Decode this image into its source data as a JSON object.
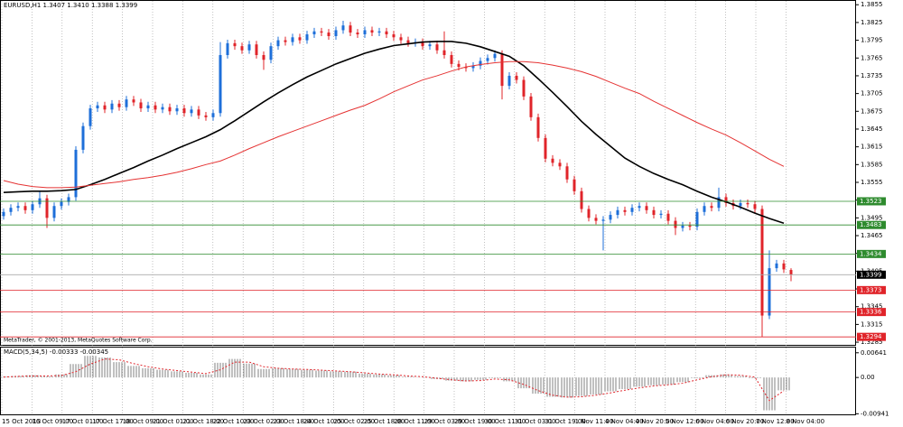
{
  "chart_data": [
    {
      "type": "candlestick",
      "title": "EURUSD,H1  1.3407 1.3410 1.3388 1.3399",
      "footer": "MetaTrader, © 2001-2013, MetaQuotes Software Corp.",
      "up_color": "#1e6fd9",
      "down_color": "#e0242a",
      "x_labels": [
        "15 Oct 2013",
        "16 Oct 09:00",
        "17 Oct 01:00",
        "17 Oct 17:00",
        "18 Oct 09:00",
        "21 Oct 01:00",
        "21 Oct 18:00",
        "22 Oct 10:00",
        "23 Oct 02:00",
        "23 Oct 18:00",
        "24 Oct 10:00",
        "25 Oct 02:00",
        "25 Oct 18:00",
        "28 Oct 11:00",
        "29 Oct 03:00",
        "29 Oct 19:00",
        "30 Oct 11:00",
        "31 Oct 03:00",
        "31 Oct 19:00",
        "1 Nov 11:00",
        "4 Nov 04:00",
        "4 Nov 20:00",
        "5 Nov 12:00",
        "6 Nov 04:00",
        "6 Nov 20:00",
        "7 Nov 12:00",
        "8 Nov 04:00"
      ],
      "ylim": [
        1.3279,
        1.3863
      ],
      "yticks": [
        1.3855,
        1.3825,
        1.3795,
        1.3765,
        1.3735,
        1.3705,
        1.3675,
        1.3645,
        1.3615,
        1.3585,
        1.3555,
        1.3525,
        1.3495,
        1.3465,
        1.3435,
        1.3405,
        1.3375,
        1.3345,
        1.3315,
        1.3285
      ],
      "open": [
        1.3498,
        1.3505,
        1.3512,
        1.3515,
        1.3508,
        1.3518,
        1.3528,
        1.3495,
        1.3515,
        1.3522,
        1.353,
        1.361,
        1.365,
        1.368,
        1.3685,
        1.3678,
        1.3688,
        1.3682,
        1.3695,
        1.369,
        1.368,
        1.3685,
        1.3678,
        1.3682,
        1.3675,
        1.368,
        1.3672,
        1.3678,
        1.3668,
        1.3665,
        1.3672,
        1.377,
        1.379,
        1.3785,
        1.3778,
        1.3788,
        1.377,
        1.3762,
        1.3785,
        1.3795,
        1.3792,
        1.38,
        1.3795,
        1.3805,
        1.381,
        1.3808,
        1.3802,
        1.3812,
        1.382,
        1.3808,
        1.3805,
        1.3812,
        1.3808,
        1.381,
        1.3805,
        1.38,
        1.3795,
        1.379,
        1.3792,
        1.3785,
        1.3788,
        1.3778,
        1.377,
        1.3755,
        1.375,
        1.3748,
        1.3752,
        1.376,
        1.3765,
        1.3772,
        1.3718,
        1.3735,
        1.3728,
        1.37,
        1.3665,
        1.363,
        1.3595,
        1.3588,
        1.3582,
        1.356,
        1.354,
        1.351,
        1.3495,
        1.349,
        1.3492,
        1.35,
        1.3508,
        1.3505,
        1.3512,
        1.3515,
        1.3508,
        1.35,
        1.3502,
        1.349,
        1.3478,
        1.3482,
        1.348,
        1.3505,
        1.3515,
        1.3512,
        1.353,
        1.352,
        1.3515,
        1.352,
        1.3518,
        1.351,
        1.333,
        1.341,
        1.3418,
        1.3407
      ],
      "high": [
        1.3511,
        1.3518,
        1.3521,
        1.3521,
        1.3524,
        1.354,
        1.3534,
        1.3521,
        1.3528,
        1.3536,
        1.3616,
        1.3656,
        1.3686,
        1.3691,
        1.3691,
        1.3694,
        1.3694,
        1.3701,
        1.3701,
        1.3696,
        1.3691,
        1.3691,
        1.3688,
        1.3688,
        1.3686,
        1.3686,
        1.3684,
        1.3684,
        1.3674,
        1.3678,
        1.3792,
        1.3796,
        1.3796,
        1.3791,
        1.3794,
        1.3794,
        1.3776,
        1.3791,
        1.3801,
        1.3801,
        1.3806,
        1.3806,
        1.3811,
        1.3816,
        1.3816,
        1.3814,
        1.3818,
        1.3828,
        1.3826,
        1.3814,
        1.3818,
        1.3818,
        1.3816,
        1.3816,
        1.3811,
        1.3806,
        1.3801,
        1.3798,
        1.3798,
        1.3794,
        1.3794,
        1.381,
        1.3776,
        1.3761,
        1.3756,
        1.3758,
        1.3766,
        1.3771,
        1.3778,
        1.3778,
        1.3741,
        1.3741,
        1.3734,
        1.3706,
        1.3671,
        1.3636,
        1.3601,
        1.3594,
        1.3588,
        1.3566,
        1.3546,
        1.3516,
        1.3501,
        1.3498,
        1.3506,
        1.3514,
        1.3514,
        1.3518,
        1.3521,
        1.3521,
        1.3514,
        1.3508,
        1.3508,
        1.3496,
        1.3488,
        1.3488,
        1.3511,
        1.3521,
        1.3521,
        1.3546,
        1.3536,
        1.3526,
        1.3526,
        1.3526,
        1.3524,
        1.3516,
        1.344,
        1.3424,
        1.3424,
        1.341
      ],
      "low": [
        1.3492,
        1.3499,
        1.3506,
        1.3502,
        1.3502,
        1.3512,
        1.3478,
        1.3489,
        1.3509,
        1.3516,
        1.3524,
        1.3604,
        1.3644,
        1.3674,
        1.3672,
        1.3672,
        1.3676,
        1.3676,
        1.3684,
        1.3674,
        1.3674,
        1.3672,
        1.3672,
        1.3669,
        1.3669,
        1.3666,
        1.3666,
        1.3662,
        1.3659,
        1.3659,
        1.3666,
        1.3764,
        1.3779,
        1.3772,
        1.3772,
        1.3764,
        1.3745,
        1.3756,
        1.3779,
        1.3786,
        1.3786,
        1.3789,
        1.3789,
        1.3799,
        1.3802,
        1.3796,
        1.3796,
        1.3806,
        1.3802,
        1.3799,
        1.3799,
        1.3802,
        1.3802,
        1.3799,
        1.3794,
        1.3789,
        1.3784,
        1.3784,
        1.3779,
        1.3779,
        1.3772,
        1.3764,
        1.3749,
        1.3744,
        1.3742,
        1.3742,
        1.3746,
        1.3754,
        1.3759,
        1.3695,
        1.3712,
        1.3722,
        1.3694,
        1.3659,
        1.3624,
        1.3589,
        1.3582,
        1.3576,
        1.3554,
        1.3534,
        1.3504,
        1.3489,
        1.3484,
        1.344,
        1.3486,
        1.3494,
        1.3499,
        1.3499,
        1.3506,
        1.3502,
        1.3494,
        1.3494,
        1.3484,
        1.3466,
        1.3472,
        1.3474,
        1.3474,
        1.3499,
        1.3506,
        1.3506,
        1.3514,
        1.3509,
        1.3509,
        1.3512,
        1.3504,
        1.3294,
        1.3324,
        1.3404,
        1.3402,
        1.3388
      ],
      "close": [
        1.3505,
        1.3512,
        1.3515,
        1.3508,
        1.3518,
        1.3528,
        1.3495,
        1.3515,
        1.3522,
        1.353,
        1.361,
        1.365,
        1.368,
        1.3685,
        1.3678,
        1.3688,
        1.3682,
        1.3695,
        1.369,
        1.368,
        1.3685,
        1.3678,
        1.3682,
        1.3675,
        1.368,
        1.3672,
        1.3678,
        1.3668,
        1.3665,
        1.3672,
        1.377,
        1.379,
        1.3785,
        1.3778,
        1.3788,
        1.377,
        1.3762,
        1.3785,
        1.3795,
        1.3792,
        1.38,
        1.3795,
        1.3805,
        1.381,
        1.3808,
        1.3802,
        1.3812,
        1.382,
        1.3808,
        1.3805,
        1.3812,
        1.3808,
        1.381,
        1.3805,
        1.38,
        1.3795,
        1.379,
        1.3792,
        1.3785,
        1.3788,
        1.3778,
        1.377,
        1.3755,
        1.375,
        1.3748,
        1.3752,
        1.376,
        1.3765,
        1.3772,
        1.3718,
        1.3735,
        1.3728,
        1.37,
        1.3665,
        1.363,
        1.3595,
        1.3588,
        1.3582,
        1.356,
        1.354,
        1.351,
        1.3495,
        1.349,
        1.3492,
        1.35,
        1.3508,
        1.3505,
        1.3512,
        1.3515,
        1.3508,
        1.35,
        1.3502,
        1.349,
        1.3478,
        1.3482,
        1.348,
        1.3505,
        1.3515,
        1.3512,
        1.353,
        1.352,
        1.3515,
        1.352,
        1.3518,
        1.351,
        1.333,
        1.341,
        1.3418,
        1.3408,
        1.3399
      ],
      "moving_averages": [
        {
          "color": "#000000",
          "values": [
            1.3538,
            1.3539,
            1.354,
            1.354,
            1.3541,
            1.3543,
            1.3551,
            1.356,
            1.357,
            1.358,
            1.3591,
            1.3601,
            1.3612,
            1.3622,
            1.3632,
            1.3644,
            1.3659,
            1.3675,
            1.3691,
            1.3706,
            1.372,
            1.3733,
            1.3744,
            1.3755,
            1.3764,
            1.3773,
            1.378,
            1.3786,
            1.3789,
            1.3792,
            1.3793,
            1.3793,
            1.379,
            1.3784,
            1.3776,
            1.3768,
            1.3752,
            1.373,
            1.3707,
            1.3683,
            1.3658,
            1.3636,
            1.3616,
            1.3596,
            1.3582,
            1.357,
            1.356,
            1.3551,
            1.354,
            1.353,
            1.3522,
            1.3513,
            1.3503,
            1.3494,
            1.3486
          ]
        },
        {
          "color": "#e53333",
          "values": [
            1.3558,
            1.3552,
            1.3548,
            1.3546,
            1.3546,
            1.3547,
            1.355,
            1.3553,
            1.3556,
            1.356,
            1.3563,
            1.3567,
            1.3572,
            1.3578,
            1.3585,
            1.3591,
            1.3601,
            1.3612,
            1.3622,
            1.3632,
            1.3641,
            1.365,
            1.3659,
            1.3668,
            1.3677,
            1.3685,
            1.3696,
            1.3708,
            1.3718,
            1.3728,
            1.3735,
            1.3743,
            1.375,
            1.3754,
            1.3757,
            1.3759,
            1.3759,
            1.3757,
            1.3753,
            1.3748,
            1.3742,
            1.3734,
            1.3724,
            1.3714,
            1.3705,
            1.3692,
            1.368,
            1.3668,
            1.3656,
            1.3645,
            1.3635,
            1.3622,
            1.3608,
            1.3594,
            1.3582
          ]
        }
      ],
      "levels": [
        {
          "value": 1.3523,
          "color": "#2e8b2e"
        },
        {
          "value": 1.3483,
          "color": "#2e8b2e"
        },
        {
          "value": 1.3434,
          "color": "#2e8b2e"
        },
        {
          "value": 1.3399,
          "color": "#000000"
        },
        {
          "value": 1.3373,
          "color": "#e0242a"
        },
        {
          "value": 1.3336,
          "color": "#e0242a"
        },
        {
          "value": 1.3294,
          "color": "#e0242a"
        }
      ]
    },
    {
      "type": "macd",
      "title": "MACD(5,34,5) -0.00333 -0.00345",
      "color": "#808080",
      "signal_color": "#e0242a",
      "ylim": [
        -0.0098,
        0.008
      ],
      "yticks": [
        0.00641,
        {
          "value": 0,
          "label": "0.00"
        },
        -0.00941
      ],
      "values": [
        0.0002,
        0.0004,
        0.0006,
        0.0003,
        0.0008,
        0.0035,
        0.0056,
        0.0052,
        0.004,
        0.003,
        0.0024,
        0.002,
        0.0016,
        0.0012,
        0.0008,
        0.0038,
        0.0048,
        0.0036,
        0.0022,
        0.0024,
        0.0022,
        0.002,
        0.0018,
        0.0016,
        0.0015,
        0.001,
        0.0008,
        0.0006,
        0.0002,
        0.0001,
        -0.0004,
        -0.0008,
        -0.001,
        -0.0006,
        -0.0002,
        -0.001,
        -0.0028,
        -0.0042,
        -0.005,
        -0.0052,
        -0.0048,
        -0.0044,
        -0.0036,
        -0.003,
        -0.0024,
        -0.002,
        -0.0018,
        -0.0012,
        -0.0002,
        0.0006,
        0.0008,
        0.0004,
        -0.0002,
        -0.0085,
        -0.00333
      ],
      "signal": [
        0.0001,
        0.0003,
        0.0004,
        0.0004,
        0.0005,
        0.0015,
        0.0035,
        0.0048,
        0.0046,
        0.0036,
        0.0028,
        0.0022,
        0.0018,
        0.0014,
        0.001,
        0.002,
        0.004,
        0.004,
        0.0028,
        0.0024,
        0.0022,
        0.0021,
        0.0019,
        0.0017,
        0.0015,
        0.0012,
        0.0009,
        0.0007,
        0.0004,
        0.0002,
        -0.0002,
        -0.0006,
        -0.0009,
        -0.0008,
        -0.0004,
        -0.0006,
        -0.0018,
        -0.0034,
        -0.0046,
        -0.0051,
        -0.005,
        -0.0046,
        -0.004,
        -0.0033,
        -0.0027,
        -0.0022,
        -0.0019,
        -0.0015,
        -0.0006,
        0.0002,
        0.0007,
        0.0006,
        0.0001,
        -0.006,
        -0.00345
      ]
    }
  ]
}
